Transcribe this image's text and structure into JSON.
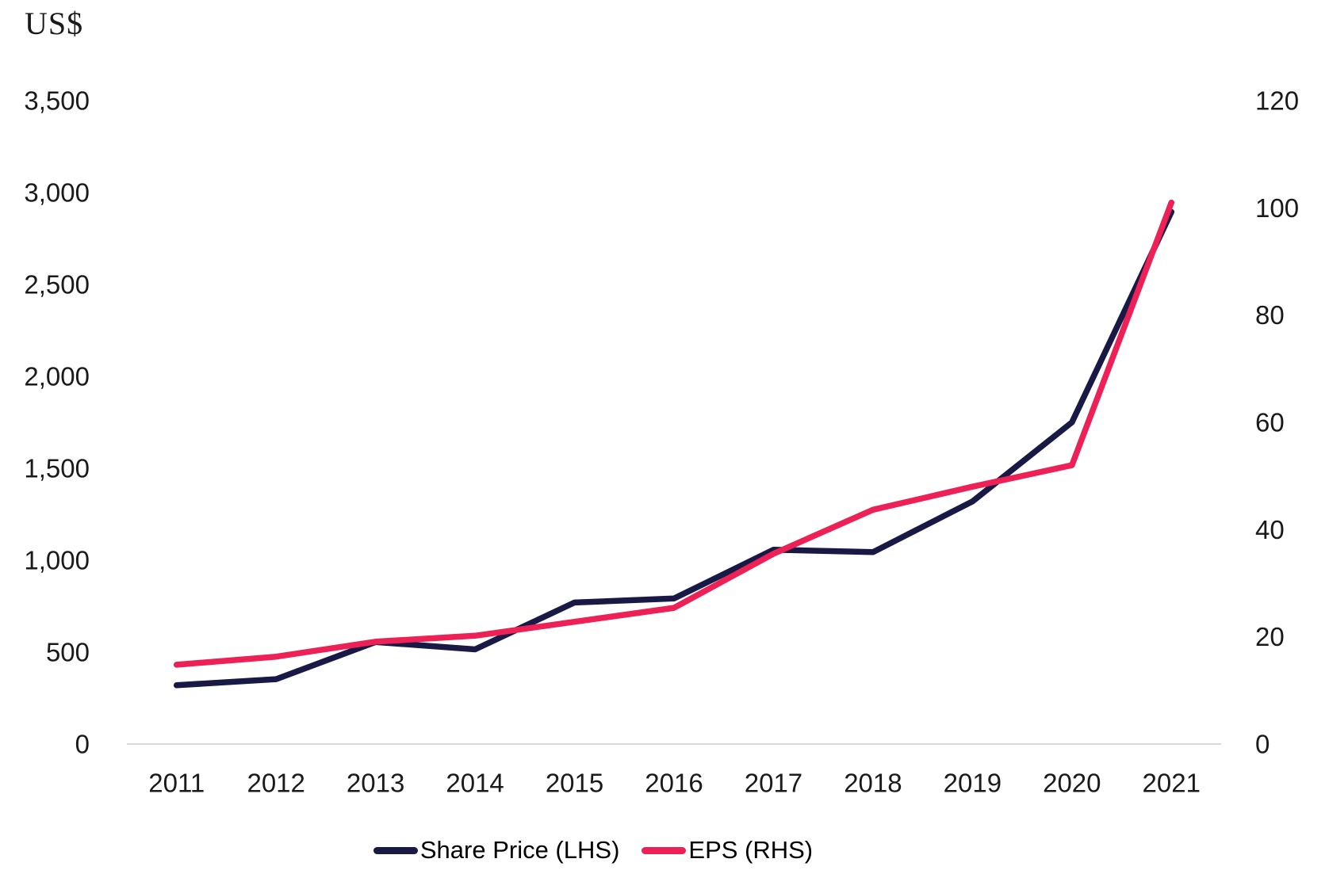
{
  "chart_data": {
    "type": "line",
    "title": "",
    "left_axis_title": "US$",
    "categories": [
      "2011",
      "2012",
      "2013",
      "2014",
      "2015",
      "2016",
      "2017",
      "2018",
      "2019",
      "2020",
      "2021"
    ],
    "series": [
      {
        "name": "Share Price (LHS)",
        "axis": "left",
        "color": "#191945",
        "values": [
          320,
          353,
          555,
          515,
          770,
          792,
          1057,
          1044,
          1320,
          1750,
          2895
        ]
      },
      {
        "name": "EPS (RHS)",
        "axis": "right",
        "color": "#ed2155",
        "values": [
          14.8,
          16.3,
          19.1,
          20.2,
          22.8,
          25.4,
          35.5,
          43.7,
          48,
          52,
          101
        ]
      }
    ],
    "left_axis": {
      "min": 0,
      "max": 3500,
      "step": 500,
      "tick_values": [
        0,
        500,
        1000,
        1500,
        2000,
        2500,
        3000,
        3500
      ],
      "tick_labels": [
        "0",
        "500",
        "1,000",
        "1,500",
        "2,000",
        "2,500",
        "3,000",
        "3,500"
      ]
    },
    "right_axis": {
      "min": 0,
      "max": 120,
      "step": 20,
      "tick_values": [
        0,
        20,
        40,
        60,
        80,
        100,
        120
      ],
      "tick_labels": [
        "0",
        "20",
        "40",
        "60",
        "80",
        "100",
        "120"
      ]
    },
    "grid": "off",
    "baseline_color": "#d9d9d9",
    "legend_position": "bottom"
  }
}
